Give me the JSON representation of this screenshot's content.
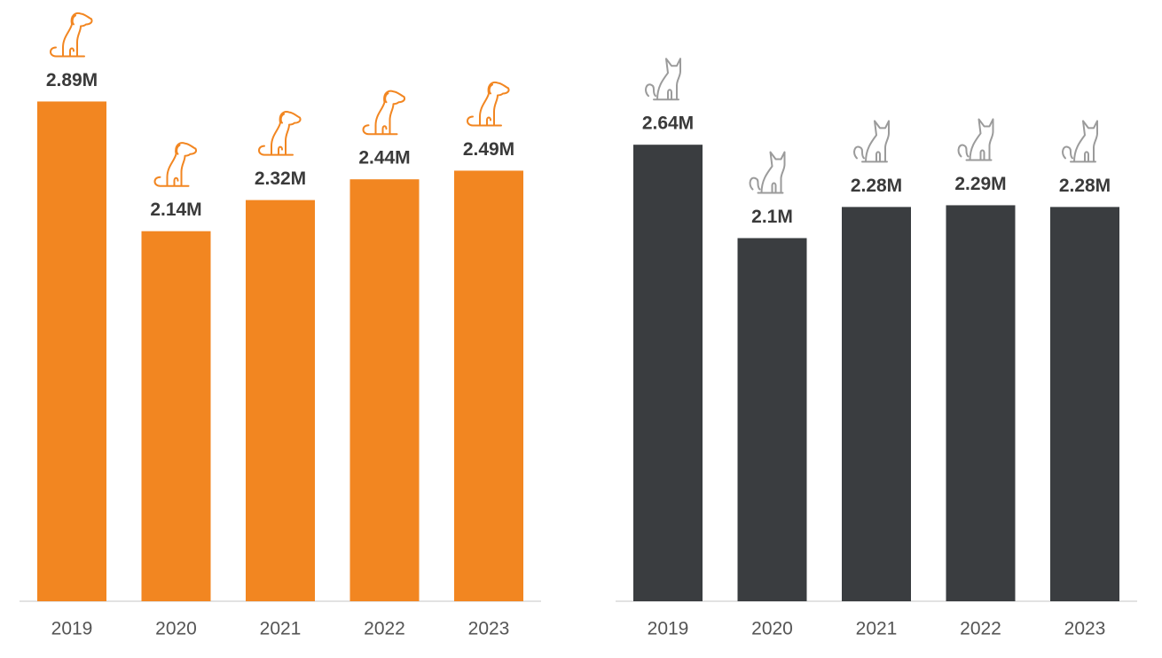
{
  "chart_data": [
    {
      "type": "bar",
      "categories": [
        "2019",
        "2020",
        "2021",
        "2022",
        "2023"
      ],
      "values": [
        2.89,
        2.14,
        2.32,
        2.44,
        2.49
      ],
      "value_labels": [
        "2.89M",
        "2.14M",
        "2.32M",
        "2.44M",
        "2.49M"
      ],
      "color": "#f28621"
    },
    {
      "type": "bar",
      "categories": [
        "2019",
        "2020",
        "2021",
        "2022",
        "2023"
      ],
      "values": [
        2.64,
        2.1,
        2.28,
        2.29,
        2.28
      ],
      "value_labels": [
        "2.64M",
        "2.1M",
        "2.28M",
        "2.29M",
        "2.28M"
      ],
      "color": "#3a3d40"
    }
  ]
}
